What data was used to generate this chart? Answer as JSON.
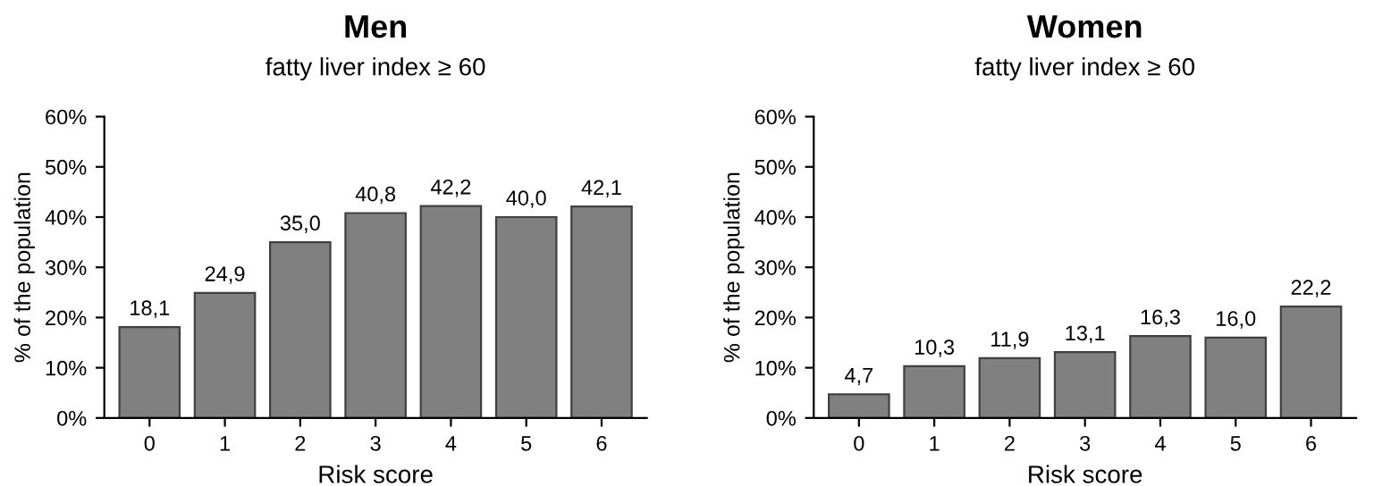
{
  "chart_data": [
    {
      "type": "bar",
      "title": "Men",
      "subtitle": "fatty liver index ≥ 60",
      "xlabel": "Risk score",
      "ylabel": "% of the population",
      "categories": [
        "0",
        "1",
        "2",
        "3",
        "4",
        "5",
        "6"
      ],
      "values": [
        18.1,
        24.9,
        35.0,
        40.8,
        42.2,
        40.0,
        42.1
      ],
      "value_labels": [
        "18,1",
        "24,9",
        "35,0",
        "40,8",
        "42,2",
        "40,0",
        "42,1"
      ],
      "color": "#808080",
      "ylim": [
        0,
        60
      ],
      "yticks": [
        {
          "value": 0,
          "label": "0%"
        },
        {
          "value": 10,
          "label": "10%"
        },
        {
          "value": 20,
          "label": "20%"
        },
        {
          "value": 30,
          "label": "30%"
        },
        {
          "value": 40,
          "label": "40%"
        },
        {
          "value": 50,
          "label": "50%"
        },
        {
          "value": 60,
          "label": "60%"
        }
      ]
    },
    {
      "type": "bar",
      "title": "Women",
      "subtitle": "fatty liver index ≥ 60",
      "xlabel": "Risk score",
      "ylabel": "% of the population",
      "categories": [
        "0",
        "1",
        "2",
        "3",
        "4",
        "5",
        "6"
      ],
      "values": [
        4.7,
        10.3,
        11.9,
        13.1,
        16.3,
        16.0,
        22.2
      ],
      "value_labels": [
        "4,7",
        "10,3",
        "11,9",
        "13,1",
        "16,3",
        "16,0",
        "22,2"
      ],
      "color": "#808080",
      "ylim": [
        0,
        60
      ],
      "yticks": [
        {
          "value": 0,
          "label": "0%"
        },
        {
          "value": 10,
          "label": "10%"
        },
        {
          "value": 20,
          "label": "20%"
        },
        {
          "value": 30,
          "label": "30%"
        },
        {
          "value": 40,
          "label": "40%"
        },
        {
          "value": 50,
          "label": "50%"
        },
        {
          "value": 60,
          "label": "60%"
        }
      ]
    }
  ]
}
